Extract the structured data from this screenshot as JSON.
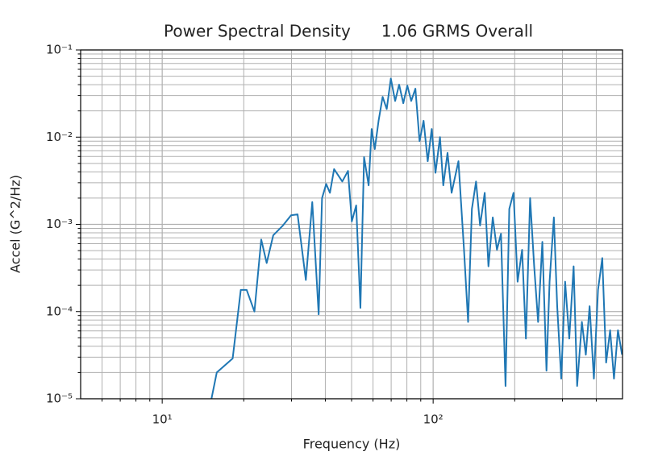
{
  "chart_data": {
    "type": "line",
    "title": "Power Spectral Density      1.06 GRMS Overall",
    "xlabel": "Frequency (Hz)",
    "ylabel": "Accel (G^2/Hz)",
    "xscale": "log",
    "yscale": "log",
    "grid": true,
    "color": "#1f77b4",
    "xlim": [
      5,
      500
    ],
    "ylim": [
      1e-05,
      0.1
    ],
    "xticks": [
      {
        "value": 10,
        "label": "10¹"
      },
      {
        "value": 100,
        "label": "10²"
      }
    ],
    "xminorticks": [
      6,
      7,
      8,
      9,
      20,
      30,
      40,
      50,
      60,
      70,
      80,
      90,
      200,
      300,
      400
    ],
    "yticks": [
      {
        "value": 1e-05,
        "label": "10⁻⁵"
      },
      {
        "value": 0.0001,
        "label": "10⁻⁴"
      },
      {
        "value": 0.001,
        "label": "10⁻³"
      },
      {
        "value": 0.01,
        "label": "10⁻²"
      },
      {
        "value": 0.1,
        "label": "10⁻¹"
      }
    ],
    "yminorticks": [
      2e-05,
      3e-05,
      4e-05,
      5e-05,
      6e-05,
      7e-05,
      8e-05,
      9e-05,
      0.0002,
      0.0003,
      0.0004,
      0.0005,
      0.0006,
      0.0007,
      0.0008,
      0.0009,
      0.002,
      0.003,
      0.004,
      0.005,
      0.006,
      0.007,
      0.008,
      0.009,
      0.02,
      0.03,
      0.04,
      0.05,
      0.06,
      0.07,
      0.08,
      0.09
    ],
    "x": [
      15.2,
      15.9,
      18.2,
      19.5,
      20.5,
      21.9,
      23.2,
      24.3,
      25.7,
      27.9,
      29.9,
      31.6,
      33.9,
      35.8,
      37.8,
      38.9,
      40.3,
      41.6,
      43.1,
      46.2,
      48.5,
      50.1,
      52.0,
      53.9,
      55.6,
      57.8,
      59.3,
      60.9,
      62.9,
      65.1,
      67.4,
      69.8,
      72.4,
      74.9,
      77.6,
      80.3,
      83.0,
      86.0,
      89.1,
      92.2,
      95.5,
      98.8,
      102,
      106,
      109,
      113,
      117,
      124,
      130,
      134.6,
      139,
      144,
      149,
      155,
      160,
      166,
      172,
      178,
      185,
      191,
      198,
      205,
      213,
      220,
      228,
      236,
      244,
      253,
      262,
      269,
      279,
      287,
      297,
      307,
      318,
      330,
      340,
      354,
      366,
      378,
      392,
      406,
      421,
      435,
      450,
      465,
      481,
      498
    ],
    "values": [
      1e-05,
      2e-05,
      2.9e-05,
      0.000177,
      0.000177,
      0.0001,
      0.00067,
      0.00036,
      0.00075,
      0.00097,
      0.00127,
      0.0013,
      0.00023,
      0.0018,
      9.3e-05,
      0.002,
      0.0029,
      0.0023,
      0.0043,
      0.0031,
      0.0041,
      0.00108,
      0.00165,
      0.00011,
      0.0059,
      0.0028,
      0.0124,
      0.0073,
      0.0154,
      0.029,
      0.021,
      0.047,
      0.026,
      0.04,
      0.0245,
      0.039,
      0.026,
      0.036,
      0.009,
      0.0154,
      0.0053,
      0.0124,
      0.0039,
      0.01,
      0.0028,
      0.0066,
      0.0023,
      0.0053,
      0.00051,
      7.6e-05,
      0.0015,
      0.0031,
      0.00097,
      0.0023,
      0.00033,
      0.0012,
      0.00051,
      0.00078,
      1.4e-05,
      0.0015,
      0.0023,
      0.00022,
      0.00051,
      4.9e-05,
      0.002,
      0.00033,
      7.6e-05,
      0.00063,
      2.1e-05,
      0.00022,
      0.0012,
      0.000115,
      1.7e-05,
      0.00022,
      4.9e-05,
      0.00033,
      1.4e-05,
      7.6e-05,
      3.2e-05,
      0.000115,
      1.7e-05,
      0.000177,
      0.00041,
      2.6e-05,
      6.1e-05,
      1.7e-05,
      6.1e-05,
      3.2e-05
    ]
  }
}
